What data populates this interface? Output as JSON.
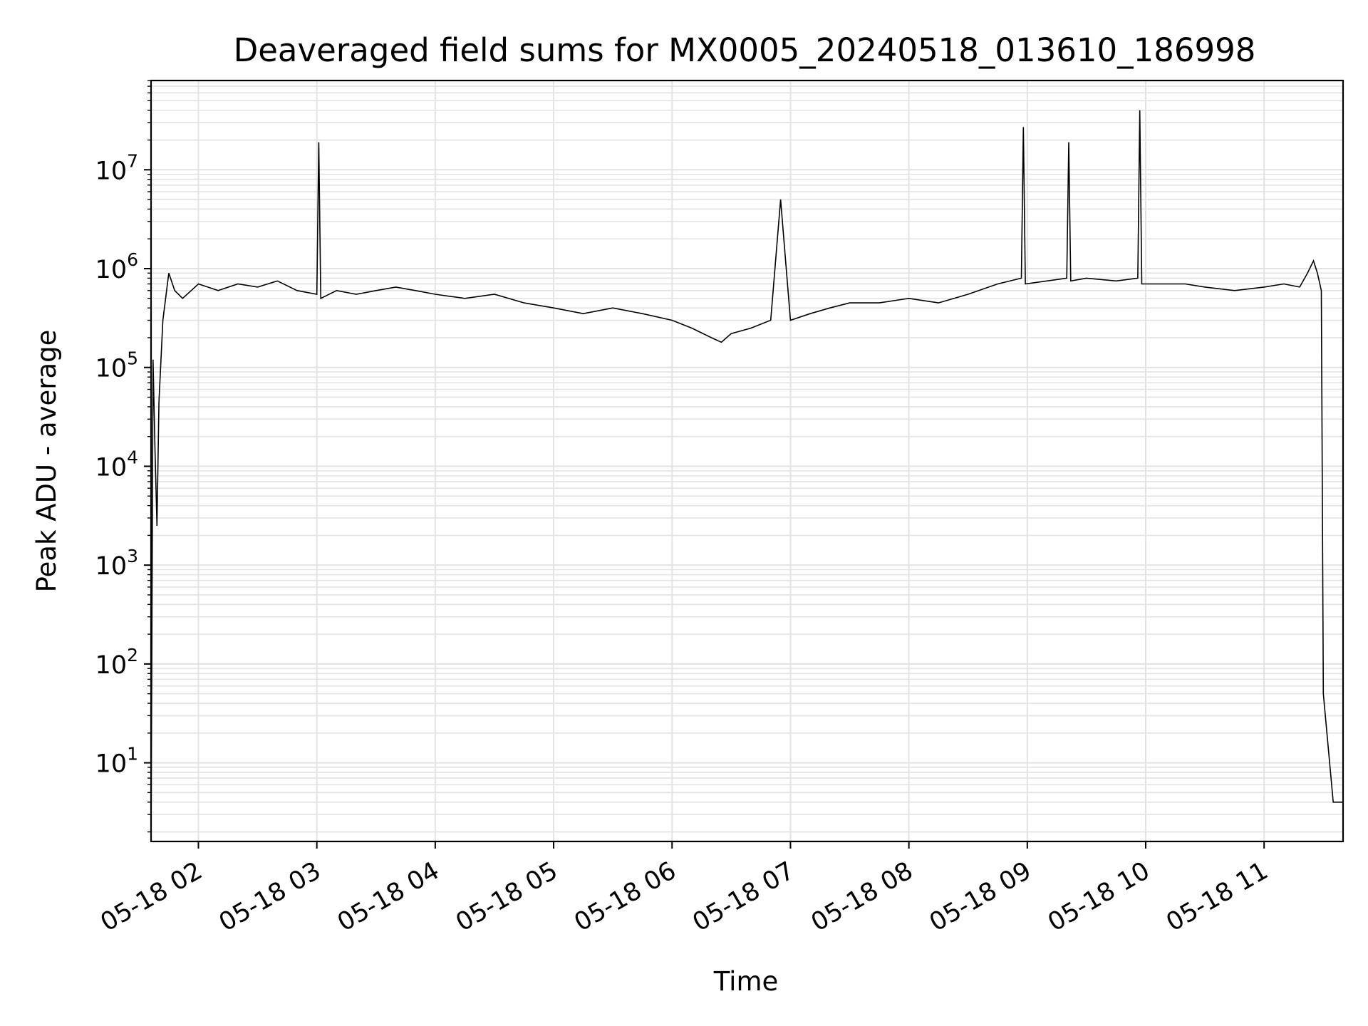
{
  "chart_data": {
    "type": "line",
    "title": "Deaveraged field sums for MX0005_20240518_013610_186998",
    "xlabel": "Time",
    "ylabel": "Peak ADU - average",
    "y_scale": "log",
    "ylim": [
      1.6,
      80000000
    ],
    "xlim": [
      "05-18 01:36",
      "05-18 11:40"
    ],
    "grid": true,
    "line_color": "#000000",
    "grid_color": "#e3e3e3",
    "x_ticks": [
      {
        "label": "05-18 02",
        "x": "05-18 02:00"
      },
      {
        "label": "05-18 03",
        "x": "05-18 03:00"
      },
      {
        "label": "05-18 04",
        "x": "05-18 04:00"
      },
      {
        "label": "05-18 05",
        "x": "05-18 05:00"
      },
      {
        "label": "05-18 06",
        "x": "05-18 06:00"
      },
      {
        "label": "05-18 07",
        "x": "05-18 07:00"
      },
      {
        "label": "05-18 08",
        "x": "05-18 08:00"
      },
      {
        "label": "05-18 09",
        "x": "05-18 09:00"
      },
      {
        "label": "05-18 10",
        "x": "05-18 10:00"
      },
      {
        "label": "05-18 11",
        "x": "05-18 11:00"
      }
    ],
    "y_ticks": [
      {
        "base": "10",
        "exp": "1",
        "value": 10
      },
      {
        "base": "10",
        "exp": "2",
        "value": 100
      },
      {
        "base": "10",
        "exp": "3",
        "value": 1000
      },
      {
        "base": "10",
        "exp": "4",
        "value": 10000
      },
      {
        "base": "10",
        "exp": "5",
        "value": 100000
      },
      {
        "base": "10",
        "exp": "6",
        "value": 1000000
      },
      {
        "base": "10",
        "exp": "7",
        "value": 10000000
      }
    ],
    "series": [
      {
        "x": [
          "05-18 01:36",
          "05-18 01:37",
          "05-18 01:38",
          "05-18 01:39",
          "05-18 01:40",
          "05-18 01:42",
          "05-18 01:45",
          "05-18 01:48",
          "05-18 01:52",
          "05-18 02:00",
          "05-18 02:10",
          "05-18 02:20",
          "05-18 02:30",
          "05-18 02:40",
          "05-18 02:50",
          "05-18 03:00",
          "05-18 03:01",
          "05-18 03:02",
          "05-18 03:10",
          "05-18 03:20",
          "05-18 03:30",
          "05-18 03:40",
          "05-18 03:50",
          "05-18 04:00",
          "05-18 04:15",
          "05-18 04:30",
          "05-18 04:45",
          "05-18 05:00",
          "05-18 05:15",
          "05-18 05:30",
          "05-18 05:45",
          "05-18 06:00",
          "05-18 06:10",
          "05-18 06:20",
          "05-18 06:25",
          "05-18 06:30",
          "05-18 06:40",
          "05-18 06:50",
          "05-18 06:55",
          "05-18 07:00",
          "05-18 07:10",
          "05-18 07:20",
          "05-18 07:30",
          "05-18 07:45",
          "05-18 08:00",
          "05-18 08:15",
          "05-18 08:30",
          "05-18 08:45",
          "05-18 08:57",
          "05-18 08:58",
          "05-18 08:59",
          "05-18 09:10",
          "05-18 09:20",
          "05-18 09:21",
          "05-18 09:22",
          "05-18 09:30",
          "05-18 09:45",
          "05-18 09:56",
          "05-18 09:57",
          "05-18 09:58",
          "05-18 10:10",
          "05-18 10:20",
          "05-18 10:30",
          "05-18 10:45",
          "05-18 11:00",
          "05-18 11:10",
          "05-18 11:18",
          "05-18 11:22",
          "05-18 11:25",
          "05-18 11:27",
          "05-18 11:29",
          "05-18 11:30",
          "05-18 11:35",
          "05-18 11:40"
        ],
        "y": [
          1.6,
          120000,
          15000,
          2500,
          45000,
          300000,
          900000,
          600000,
          500000,
          700000,
          600000,
          700000,
          650000,
          750000,
          600000,
          550000,
          19000000,
          500000,
          600000,
          550000,
          600000,
          650000,
          600000,
          550000,
          500000,
          550000,
          450000,
          400000,
          350000,
          400000,
          350000,
          300000,
          250000,
          200000,
          180000,
          220000,
          250000,
          300000,
          5000000,
          300000,
          350000,
          400000,
          450000,
          450000,
          500000,
          450000,
          550000,
          700000,
          800000,
          27000000,
          700000,
          750000,
          800000,
          19000000,
          750000,
          800000,
          750000,
          800000,
          40000000,
          700000,
          700000,
          700000,
          650000,
          600000,
          650000,
          700000,
          650000,
          900000,
          1200000,
          900000,
          600000,
          50,
          4,
          4
        ]
      }
    ]
  }
}
